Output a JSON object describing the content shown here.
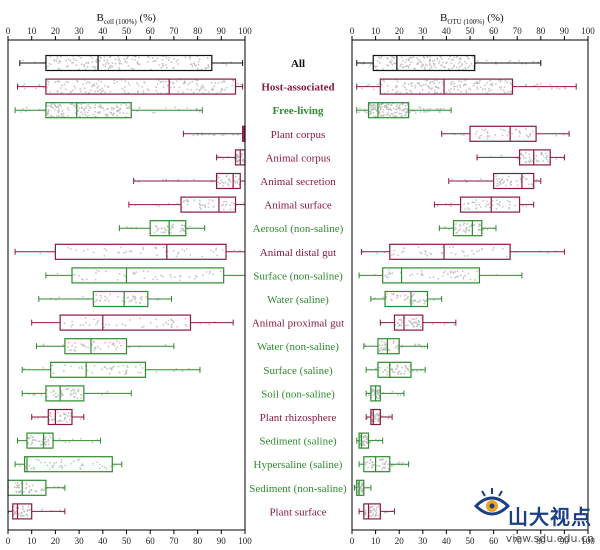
{
  "chart_data": [
    {
      "type": "box",
      "title": "B_cell(100%) (%)",
      "xlabel_main": "B",
      "xlabel_sub": "cell (100%)",
      "xlabel_unit": "(%)",
      "xlim": [
        0,
        100
      ],
      "xticks": [
        0,
        10,
        20,
        30,
        40,
        50,
        60,
        70,
        80,
        90,
        100
      ],
      "axis_position": "top-and-bottom",
      "categories": [
        "All",
        "Host-associated",
        "Free-living",
        "Plant corpus",
        "Animal corpus",
        "Animal secretion",
        "Animal surface",
        "Aerosol (non-saline)",
        "Animal distal gut",
        "Surface (non-saline)",
        "Water (saline)",
        "Animal proximal gut",
        "Water (non-saline)",
        "Surface (saline)",
        "Soil (non-saline)",
        "Plant rhizosphere",
        "Sediment (saline)",
        "Hypersaline (saline)",
        "Sediment (non-saline)",
        "Plant surface"
      ],
      "boxes": [
        {
          "min": 5,
          "q1": 16,
          "median": 38,
          "q3": 86,
          "max": 99
        },
        {
          "min": 4,
          "q1": 16,
          "median": 68,
          "q3": 96,
          "max": 99
        },
        {
          "min": 3,
          "q1": 16,
          "median": 29,
          "q3": 52,
          "max": 82
        },
        {
          "min": 74,
          "q1": 99,
          "median": 99.5,
          "q3": 100,
          "max": 100
        },
        {
          "min": 88,
          "q1": 96,
          "median": 98,
          "q3": 100,
          "max": 100
        },
        {
          "min": 53,
          "q1": 88,
          "median": 95,
          "q3": 98,
          "max": 100
        },
        {
          "min": 51,
          "q1": 73,
          "median": 89,
          "q3": 96,
          "max": 100
        },
        {
          "min": 47,
          "q1": 60,
          "median": 68,
          "q3": 75,
          "max": 83
        },
        {
          "min": 3,
          "q1": 20,
          "median": 67,
          "q3": 92,
          "max": 100
        },
        {
          "min": 16,
          "q1": 27,
          "median": 50,
          "q3": 91,
          "max": 100
        },
        {
          "min": 13,
          "q1": 36,
          "median": 49,
          "q3": 59,
          "max": 69
        },
        {
          "min": 10,
          "q1": 22,
          "median": 40,
          "q3": 77,
          "max": 95
        },
        {
          "min": 12,
          "q1": 24,
          "median": 35,
          "q3": 50,
          "max": 70
        },
        {
          "min": 6,
          "q1": 18,
          "median": 33,
          "q3": 58,
          "max": 81
        },
        {
          "min": 6,
          "q1": 16,
          "median": 22,
          "q3": 32,
          "max": 52
        },
        {
          "min": 10,
          "q1": 17,
          "median": 20,
          "q3": 27,
          "max": 32
        },
        {
          "min": 4,
          "q1": 8,
          "median": 15,
          "q3": 19,
          "max": 39
        },
        {
          "min": 3,
          "q1": 7,
          "median": 8,
          "q3": 44,
          "max": 48
        },
        {
          "min": 0,
          "q1": 0,
          "median": 6,
          "q3": 16,
          "max": 24
        },
        {
          "min": 0,
          "q1": 2,
          "median": 4,
          "q3": 10,
          "max": 24
        }
      ]
    },
    {
      "type": "box",
      "title": "B_OTU(100%) (%)",
      "xlabel_main": "B",
      "xlabel_sub": "OTU (100%)",
      "xlabel_unit": "(%)",
      "xlim": [
        0,
        100
      ],
      "xticks": [
        0,
        10,
        20,
        30,
        40,
        50,
        60,
        70,
        80,
        90,
        100
      ],
      "axis_position": "top-and-bottom",
      "categories": [
        "All",
        "Host-associated",
        "Free-living",
        "Plant corpus",
        "Animal corpus",
        "Animal secretion",
        "Animal surface",
        "Aerosol (non-saline)",
        "Animal distal gut",
        "Surface (non-saline)",
        "Water (saline)",
        "Animal proximal gut",
        "Water (non-saline)",
        "Surface (saline)",
        "Soil (non-saline)",
        "Plant rhizosphere",
        "Sediment (saline)",
        "Hypersaline (saline)",
        "Sediment (non-saline)",
        "Plant surface"
      ],
      "boxes": [
        {
          "min": 2,
          "q1": 9,
          "median": 19,
          "q3": 52,
          "max": 80
        },
        {
          "min": 2,
          "q1": 12,
          "median": 39,
          "q3": 68,
          "max": 95
        },
        {
          "min": 2,
          "q1": 7,
          "median": 11,
          "q3": 24,
          "max": 42
        },
        {
          "min": 38,
          "q1": 50,
          "median": 67,
          "q3": 78,
          "max": 92
        },
        {
          "min": 53,
          "q1": 71,
          "median": 77,
          "q3": 84,
          "max": 90
        },
        {
          "min": 41,
          "q1": 60,
          "median": 72,
          "q3": 77,
          "max": 80
        },
        {
          "min": 35,
          "q1": 46,
          "median": 59,
          "q3": 71,
          "max": 77
        },
        {
          "min": 37,
          "q1": 43,
          "median": 51,
          "q3": 55,
          "max": 61
        },
        {
          "min": 4,
          "q1": 16,
          "median": 39,
          "q3": 67,
          "max": 90
        },
        {
          "min": 3,
          "q1": 13,
          "median": 21,
          "q3": 54,
          "max": 72
        },
        {
          "min": 8,
          "q1": 14,
          "median": 25,
          "q3": 32,
          "max": 38
        },
        {
          "min": 12,
          "q1": 18,
          "median": 22,
          "q3": 30,
          "max": 44
        },
        {
          "min": 5,
          "q1": 11,
          "median": 15,
          "q3": 20,
          "max": 32
        },
        {
          "min": 6,
          "q1": 11,
          "median": 16,
          "q3": 25,
          "max": 31
        },
        {
          "min": 6,
          "q1": 8,
          "median": 10,
          "q3": 12,
          "max": 22
        },
        {
          "min": 6,
          "q1": 8,
          "median": 9,
          "q3": 12,
          "max": 17
        },
        {
          "min": 2,
          "q1": 3,
          "median": 4,
          "q3": 7,
          "max": 13
        },
        {
          "min": 3,
          "q1": 5,
          "median": 10,
          "q3": 16,
          "max": 24
        },
        {
          "min": 1,
          "q1": 2,
          "median": 3,
          "q3": 5,
          "max": 8
        },
        {
          "min": 3,
          "q1": 5,
          "median": 7,
          "q3": 12,
          "max": 18
        }
      ]
    }
  ],
  "category_groups": [
    "all",
    "host",
    "free",
    "host",
    "host",
    "host",
    "host",
    "free",
    "host",
    "free",
    "free",
    "host",
    "free",
    "free",
    "free",
    "host",
    "free",
    "free",
    "free",
    "host"
  ],
  "colors": {
    "all": "#111111",
    "host": "#8b1a3a",
    "free": "#2e8b2e",
    "jitter": "#b8b8b8",
    "axis": "#000000"
  },
  "watermark": {
    "text": "山大视点",
    "url": "view.sdu.edu.cn",
    "icon": "eye-logo-icon"
  }
}
